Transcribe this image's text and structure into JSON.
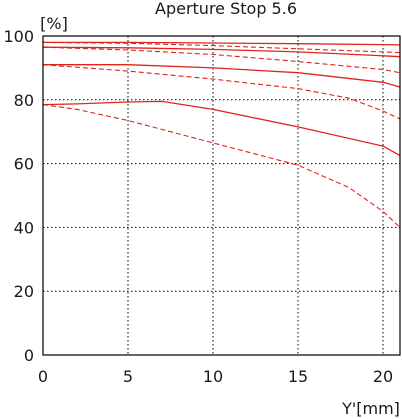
{
  "chart_data": {
    "type": "line",
    "title": "Aperture Stop 5.6",
    "xlabel": "Y'[mm]",
    "ylabel": "[%]",
    "xlim": [
      0,
      21
    ],
    "ylim": [
      0,
      100
    ],
    "x_ticks": [
      0,
      5,
      10,
      15,
      20
    ],
    "y_ticks": [
      0,
      20,
      40,
      60,
      80,
      100
    ],
    "grid": true,
    "colors": {
      "curves": "#e0241b",
      "axes": "#000000"
    },
    "series": [
      {
        "style": "solid",
        "x": [
          0,
          5,
          10,
          15,
          20,
          21
        ],
        "y": [
          98.0,
          98.0,
          97.8,
          97.6,
          97.3,
          97.2
        ]
      },
      {
        "style": "dashed",
        "x": [
          0,
          5,
          10,
          15,
          20,
          21
        ],
        "y": [
          98.0,
          97.7,
          97.0,
          96.0,
          95.0,
          94.8
        ]
      },
      {
        "style": "solid",
        "x": [
          0,
          5,
          10,
          15,
          20,
          21
        ],
        "y": [
          96.5,
          96.3,
          95.8,
          95.0,
          93.8,
          93.5
        ]
      },
      {
        "style": "dashed",
        "x": [
          0,
          5,
          10,
          15,
          20,
          21
        ],
        "y": [
          96.5,
          95.6,
          94.2,
          92.0,
          89.5,
          88.5
        ]
      },
      {
        "style": "solid",
        "x": [
          0,
          5,
          10,
          15,
          20,
          21
        ],
        "y": [
          91.0,
          91.0,
          90.0,
          88.5,
          85.5,
          84.0
        ]
      },
      {
        "style": "dashed",
        "x": [
          0,
          5,
          10,
          15,
          18,
          20,
          21
        ],
        "y": [
          91.0,
          89.0,
          86.5,
          83.5,
          80.5,
          76.5,
          74.0
        ]
      },
      {
        "style": "solid",
        "x": [
          0,
          2,
          5,
          7,
          10,
          15,
          20,
          21
        ],
        "y": [
          78.5,
          78.7,
          79.3,
          79.5,
          77.0,
          71.5,
          65.5,
          62.5
        ]
      },
      {
        "style": "dashed",
        "x": [
          0,
          2,
          5,
          10,
          15,
          18,
          20,
          21
        ],
        "y": [
          78.5,
          77.0,
          73.5,
          66.5,
          59.5,
          52.5,
          45.0,
          40.0
        ]
      }
    ]
  }
}
